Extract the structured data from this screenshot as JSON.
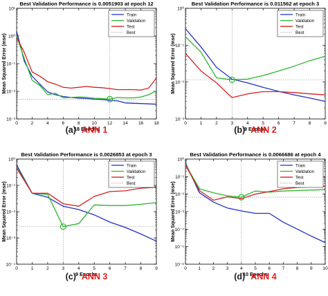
{
  "colors": {
    "train": "#1f2fbf",
    "validation": "#2ab52a",
    "test": "#d42020",
    "best": "#9a9a9a",
    "caption_letter": "#1a1a1a",
    "caption_ann": "#e0201c",
    "axis": "#000000"
  },
  "chart_data": [
    {
      "type": "line",
      "y_scale": "log",
      "title": "Best Validation Performance is 0.0051903 at epoch 12",
      "xlabel": "18 Epochs",
      "ylabel": "Mean Squared Error  (mse)",
      "caption_letter": "(a)",
      "caption_ann": "ANN 1",
      "xlim": [
        0,
        18
      ],
      "ylim": [
        0.001,
        10
      ],
      "x_ticks": [
        0,
        2,
        4,
        6,
        8,
        10,
        12,
        14,
        16,
        18
      ],
      "y_ticks": [
        0.001,
        0.01,
        0.1,
        1,
        10
      ],
      "y_tick_labels": [
        "10⁻³",
        "10⁻²",
        "10⁻¹",
        "10⁰",
        "10¹"
      ],
      "legend": [
        "Train",
        "Validation",
        "Test",
        "Best"
      ],
      "legend_position": "top-right",
      "best": {
        "epoch": 12,
        "value": 0.0051903
      },
      "x": [
        0,
        1,
        2,
        3,
        4,
        5,
        6,
        7,
        8,
        9,
        10,
        11,
        12,
        13,
        14,
        15,
        16,
        17,
        18
      ],
      "series": [
        {
          "name": "Train",
          "values": [
            1.5,
            0.12,
            0.035,
            0.018,
            0.0095,
            0.0075,
            0.0065,
            0.006,
            0.0057,
            0.0055,
            0.0052,
            0.005,
            0.0047,
            0.0045,
            0.0038,
            0.0037,
            0.0036,
            0.0035,
            0.0034
          ]
        },
        {
          "name": "Validation",
          "values": [
            1.0,
            0.15,
            0.025,
            0.016,
            0.0075,
            0.0085,
            0.0058,
            0.006,
            0.0062,
            0.0061,
            0.0056,
            0.0055,
            0.0052,
            0.006,
            0.0058,
            0.0058,
            0.0062,
            0.0075,
            0.0105
          ]
        },
        {
          "name": "Test",
          "values": [
            0.9,
            0.25,
            0.05,
            0.035,
            0.022,
            0.018,
            0.014,
            0.013,
            0.014,
            0.015,
            0.014,
            0.0135,
            0.0125,
            0.0115,
            0.0115,
            0.0115,
            0.011,
            0.013,
            0.03
          ]
        }
      ]
    },
    {
      "type": "line",
      "y_scale": "log",
      "title": "Best Validation Performance is 0.011562 at epoch 3",
      "xlabel": "9 Epochs",
      "ylabel": "Mean Squared Error  (mse)",
      "caption_letter": "(b)",
      "caption_ann": "ANN 2",
      "xlim": [
        0,
        9
      ],
      "ylim": [
        0.001,
        1
      ],
      "x_ticks": [
        0,
        1,
        2,
        3,
        4,
        5,
        6,
        7,
        8,
        9
      ],
      "y_ticks": [
        0.001,
        0.01,
        0.1,
        1
      ],
      "y_tick_labels": [
        "10⁻³",
        "10⁻²",
        "10⁻¹",
        "10⁰"
      ],
      "legend": [
        "Train",
        "Validation",
        "Test",
        "Best"
      ],
      "legend_position": "top-right",
      "best": {
        "epoch": 3,
        "value": 0.011562
      },
      "x": [
        0,
        1,
        2,
        3,
        4,
        5,
        6,
        7,
        8,
        9
      ],
      "series": [
        {
          "name": "Train",
          "values": [
            0.28,
            0.09,
            0.025,
            0.012,
            0.0095,
            0.0072,
            0.0056,
            0.0045,
            0.0037,
            0.003
          ]
        },
        {
          "name": "Validation",
          "values": [
            0.17,
            0.065,
            0.013,
            0.0116,
            0.012,
            0.015,
            0.02,
            0.027,
            0.038,
            0.05
          ]
        },
        {
          "name": "Test",
          "values": [
            0.06,
            0.02,
            0.0095,
            0.0038,
            0.0048,
            0.0055,
            0.0055,
            0.0052,
            0.0048,
            0.0045
          ]
        }
      ]
    },
    {
      "type": "line",
      "y_scale": "log",
      "title": "Best Validation Performance is 0.0026853 at epoch 3",
      "xlabel": "9 Epochs",
      "ylabel": "Mean Squared Error  (mse)",
      "caption_letter": "(c)",
      "caption_ann": "ANN 3",
      "xlim": [
        0,
        9
      ],
      "ylim": [
        0.0001,
        1
      ],
      "x_ticks": [
        0,
        1,
        2,
        3,
        4,
        5,
        6,
        7,
        8,
        9
      ],
      "y_ticks": [
        0.0001,
        0.001,
        0.01,
        0.1,
        1
      ],
      "y_tick_labels": [
        "10⁻⁴",
        "10⁻³",
        "10⁻²",
        "10⁻¹",
        "10⁰"
      ],
      "legend": [
        "Train",
        "Validation",
        "Test",
        "Best"
      ],
      "legend_position": "top-right",
      "best": {
        "epoch": 3,
        "value": 0.0026853
      },
      "x": [
        0,
        1,
        2,
        3,
        4,
        5,
        6,
        7,
        8,
        9
      ],
      "series": [
        {
          "name": "Train",
          "values": [
            0.6,
            0.05,
            0.035,
            0.016,
            0.012,
            0.0075,
            0.004,
            0.0025,
            0.0014,
            0.00075
          ]
        },
        {
          "name": "Validation",
          "values": [
            0.5,
            0.05,
            0.045,
            0.0027,
            0.0035,
            0.018,
            0.017,
            0.017,
            0.019,
            0.022
          ]
        },
        {
          "name": "Test",
          "values": [
            0.45,
            0.05,
            0.05,
            0.02,
            0.016,
            0.038,
            0.058,
            0.062,
            0.078,
            0.085
          ]
        }
      ]
    },
    {
      "type": "line",
      "y_scale": "log",
      "title": "Best Validation Performance is 0.0066686 at epoch 4",
      "xlabel": "10 Epochs",
      "ylabel": "Mean Squared Error  (mse)",
      "caption_letter": "(d)",
      "caption_ann": "ANN 4",
      "xlim": [
        0,
        10
      ],
      "ylim": [
        1e-06,
        1
      ],
      "x_ticks": [
        0,
        1,
        2,
        3,
        4,
        5,
        6,
        7,
        8,
        9,
        10
      ],
      "y_ticks": [
        1e-06,
        1e-05,
        0.0001,
        0.001,
        0.01,
        0.1,
        1
      ],
      "y_tick_labels": [
        "10⁻⁶",
        "10⁻⁵",
        "10⁻⁴",
        "10⁻³",
        "10⁻²",
        "10⁻¹",
        "10⁰"
      ],
      "legend": [
        "Train",
        "Validation",
        "Test",
        "Best"
      ],
      "legend_position": "top-right",
      "best": {
        "epoch": 4,
        "value": 0.0066686
      },
      "x": [
        0,
        1,
        2,
        3,
        4,
        5,
        6,
        7,
        8,
        9,
        10
      ],
      "series": [
        {
          "name": "Train",
          "values": [
            0.6,
            0.012,
            0.0035,
            0.0016,
            0.0011,
            0.0008,
            0.0008,
            0.00025,
            0.0001,
            4e-05,
            1.7e-05
          ]
        },
        {
          "name": "Validation",
          "values": [
            0.5,
            0.02,
            0.012,
            0.008,
            0.0067,
            0.015,
            0.013,
            0.015,
            0.016,
            0.017,
            0.018
          ]
        },
        {
          "name": "Test",
          "values": [
            0.45,
            0.016,
            0.0045,
            0.007,
            0.0055,
            0.01,
            0.014,
            0.02,
            0.024,
            0.026,
            0.028
          ]
        }
      ]
    }
  ]
}
